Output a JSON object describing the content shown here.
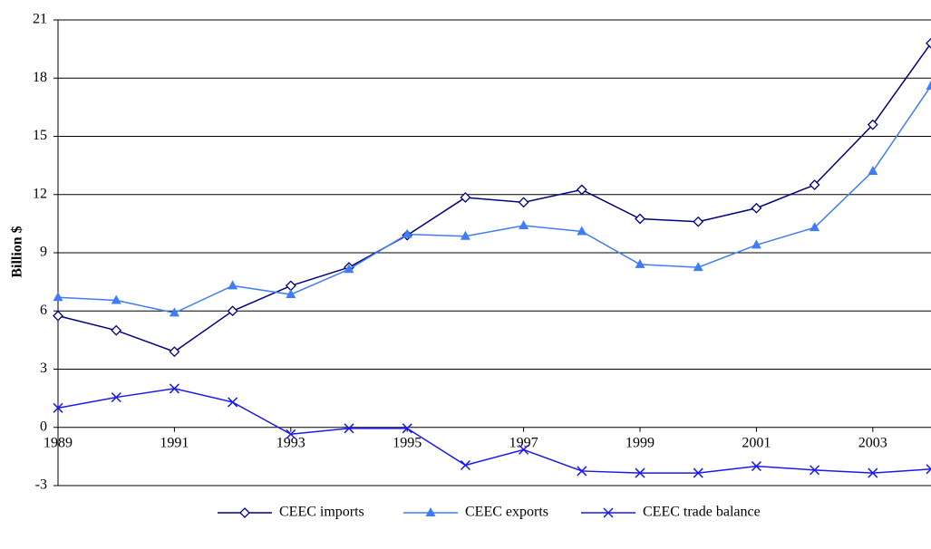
{
  "chart_data": {
    "type": "line",
    "y_label": "Billion $",
    "x": [
      1989,
      1990,
      1991,
      1992,
      1993,
      1994,
      1995,
      1996,
      1997,
      1998,
      1999,
      2000,
      2001,
      2002,
      2003,
      2004
    ],
    "xlim": [
      1989,
      2004
    ],
    "xticks": [
      1989,
      1991,
      1993,
      1995,
      1997,
      1999,
      2001,
      2003
    ],
    "ylim": [
      -3,
      21
    ],
    "yticks": [
      -3,
      0,
      3,
      6,
      9,
      12,
      15,
      18,
      21
    ],
    "grid": true,
    "legend": "bottom",
    "series": [
      {
        "name": "CEEC imports",
        "color": "#000080",
        "marker": "diamond",
        "values": [
          5.75,
          5.0,
          3.9,
          6.0,
          7.3,
          8.25,
          9.9,
          11.85,
          11.6,
          12.25,
          10.75,
          10.6,
          11.3,
          12.5,
          15.6,
          19.8
        ]
      },
      {
        "name": "CEEC exports",
        "color": "#3f7cf5",
        "marker": "triangle",
        "values": [
          6.7,
          6.55,
          5.9,
          7.3,
          6.85,
          8.15,
          9.95,
          9.85,
          10.4,
          10.1,
          8.4,
          8.25,
          9.4,
          10.3,
          13.2,
          17.6
        ]
      },
      {
        "name": "CEEC trade balance",
        "color": "#1a1aee",
        "marker": "x",
        "values": [
          1.0,
          1.55,
          2.0,
          1.3,
          -0.35,
          -0.05,
          -0.05,
          -1.95,
          -1.15,
          -2.25,
          -2.35,
          -2.35,
          -2.0,
          -2.2,
          -2.35,
          -2.15
        ]
      }
    ]
  }
}
